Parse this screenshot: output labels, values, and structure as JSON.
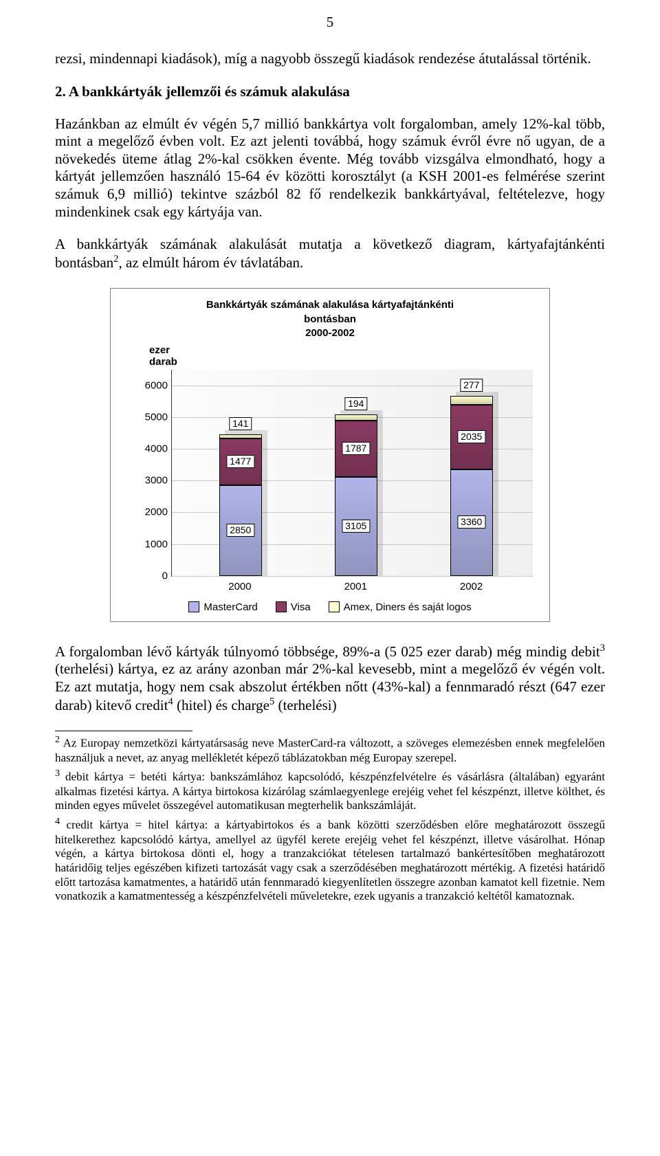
{
  "page_number": "5",
  "intro_para": "rezsi, mindennapi kiadások), míg a nagyobb összegű kiadások rendezése átutalással történik.",
  "heading": "2.   A bankkártyák jellemzői és számuk alakulása",
  "body1_a": "Hazánkban az elmúlt év végén 5,7 millió bankkártya volt forgalomban, amely 12%-kal több, mint a megelőző évben volt. Ez azt jelenti továbbá, hogy számuk évről évre nő ugyan, de a növekedés üteme átlag 2%-kal csökken évente. Még tovább vizsgálva elmondható, hogy a kártyát jellemzően használó 15-64 év közötti korosztályt (a KSH 2001-es felmérése szerint számuk 6,9 millió) tekintve százból 82 fő rendelkezik bankkártyával, feltételezve, hogy mindenkinek csak egy kártyája van.",
  "body1_b_pre": "A bankkártyák számának alakulását mutatja a következő diagram, kártyafajtánkénti bontásban",
  "body1_b_sup": "2",
  "body1_b_post": ", az elmúlt három év távlatában.",
  "body2_a": "A forgalomban lévő kártyák túlnyomó többsége, 89%-a (5 025 ezer darab) még mindig debit",
  "body2_a_sup": "3",
  "body2_b": " (terhelési) kártya, ez az arány azonban már 2%-kal kevesebb, mint a megelőző év végén volt. Ez azt mutatja, hogy nem csak abszolut értékben nőtt (43%-kal) a fennmaradó részt (647 ezer darab) kitevő credit",
  "body2_b_sup": "4",
  "body2_c": " (hitel) és charge",
  "body2_c_sup": "5",
  "body2_d": " (terhelési)",
  "fn2_sup": "2",
  "fn2": " Az Europay nemzetközi kártyatársaság neve MasterCard-ra változott, a szöveges elemezésben ennek megfelelően használjuk a nevet, az anyag mellékletét képező táblázatokban még Europay szerepel.",
  "fn3_sup": "3",
  "fn3": " debit kártya = betéti kártya: bankszámlához kapcsolódó, készpénzfelvételre és vásárlásra (általában) egyaránt alkalmas fizetési kártya. A kártya birtokosa kizárólag számlaegyenlege erejéig vehet fel készpénzt, illetve költhet, és minden egyes művelet összegével automatikusan megterhelik bankszámláját.",
  "fn4_sup": "4",
  "fn4": " credit kártya = hitel kártya: a kártyabirtokos és a bank közötti szerződésben előre meghatározott összegű hitelkerethez kapcsolódó kártya, amellyel az ügyfél kerete erejéig vehet fel készpénzt, illetve vásárolhat. Hónap végén, a kártya birtokosa dönti el, hogy a tranzakciókat tételesen tartalmazó bankértesítőben meghatározott határidőig teljes egészében kifizeti tartozását vagy csak a szerződésében meghatározott mértékig. A fizetési határidő előtt tartozása kamatmentes, a határidő után fennmaradó kiegyenlítetlen összegre azonban kamatot kell fizetnie. Nem vonatkozik a kamatmentesség a készpénzfelvételi műveletekre, ezek ugyanis a tranzakció keltétől kamatoznak.",
  "chart": {
    "type": "bar-stacked-3d",
    "title_line1": "Bankkártyák számának alakulása kártyafajtánkénti",
    "title_line2": "bontásban",
    "title_line3": "2000-2002",
    "y_unit_line1": "ezer",
    "y_unit_line2": "darab",
    "y_max": 6500,
    "y_ticks": [
      "0",
      "1000",
      "2000",
      "3000",
      "4000",
      "5000",
      "6000"
    ],
    "categories": [
      "2000",
      "2001",
      "2002"
    ],
    "series": [
      {
        "name": "MasterCard",
        "color": "#b0b4e8"
      },
      {
        "name": "Visa",
        "color": "#8b3a62"
      },
      {
        "name": "Amex, Diners és saját logos",
        "color": "#fdfccc"
      }
    ],
    "data": {
      "2000": {
        "MasterCard": 2850,
        "Visa": 1477,
        "Other": 141
      },
      "2001": {
        "MasterCard": 3105,
        "Visa": 1787,
        "Other": 194
      },
      "2002": {
        "MasterCard": 3360,
        "Visa": 2035,
        "Other": 277
      }
    },
    "labels": {
      "2000": [
        "2850",
        "1477",
        "141"
      ],
      "2001": [
        "3105",
        "1787",
        "194"
      ],
      "2002": [
        "3360",
        "2035",
        "277"
      ]
    },
    "font_family": "Arial",
    "title_fontsize": 15,
    "label_fontsize": 14,
    "tick_fontsize": 15,
    "background_color": "#ffffff",
    "grid_color": "#c8c8c8"
  }
}
